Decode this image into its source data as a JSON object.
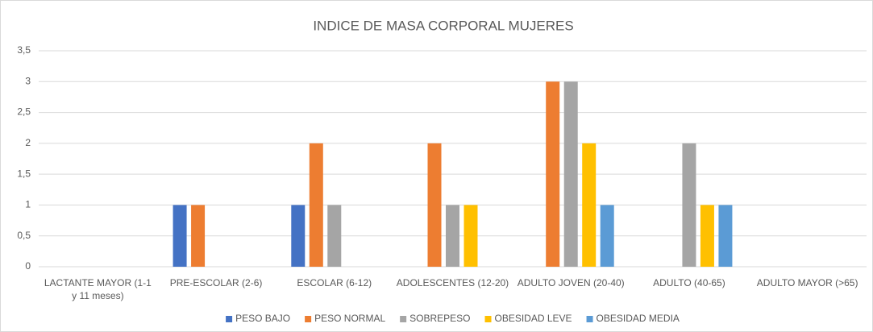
{
  "chart_data": {
    "type": "bar",
    "title": "INDICE DE MASA CORPORAL MUJERES",
    "categories": [
      "LACTANTE MAYOR (1-1 y 11 meses)",
      "PRE-ESCOLAR (2-6)",
      "ESCOLAR (6-12)",
      "ADOLESCENTES (12-20)",
      "ADULTO JOVEN (20-40)",
      "ADULTO  (40-65)",
      "ADULTO MAYOR (>65)"
    ],
    "series": [
      {
        "name": "PESO BAJO",
        "color": "#4472c4",
        "values": [
          0,
          1,
          1,
          0,
          0,
          0,
          0
        ]
      },
      {
        "name": "PESO NORMAL",
        "color": "#ed7d31",
        "values": [
          0,
          1,
          2,
          2,
          3,
          0,
          0
        ]
      },
      {
        "name": "SOBREPESO",
        "color": "#a5a5a5",
        "values": [
          0,
          0,
          1,
          1,
          3,
          2,
          0
        ]
      },
      {
        "name": "OBESIDAD LEVE",
        "color": "#ffc000",
        "values": [
          0,
          0,
          0,
          1,
          2,
          1,
          0
        ]
      },
      {
        "name": "OBESIDAD MEDIA",
        "color": "#5b9bd5",
        "values": [
          0,
          0,
          0,
          0,
          1,
          1,
          0
        ]
      }
    ],
    "ylim": [
      0,
      3.5
    ],
    "yticks": [
      0,
      {
        "value": 0.5,
        "label": "0,5"
      },
      1,
      {
        "value": 1.5,
        "label": "1,5"
      },
      2,
      {
        "value": 2.5,
        "label": "2,5"
      },
      3,
      {
        "value": 3.5,
        "label": "3,5"
      }
    ],
    "grid": true,
    "legend": "bottom"
  }
}
